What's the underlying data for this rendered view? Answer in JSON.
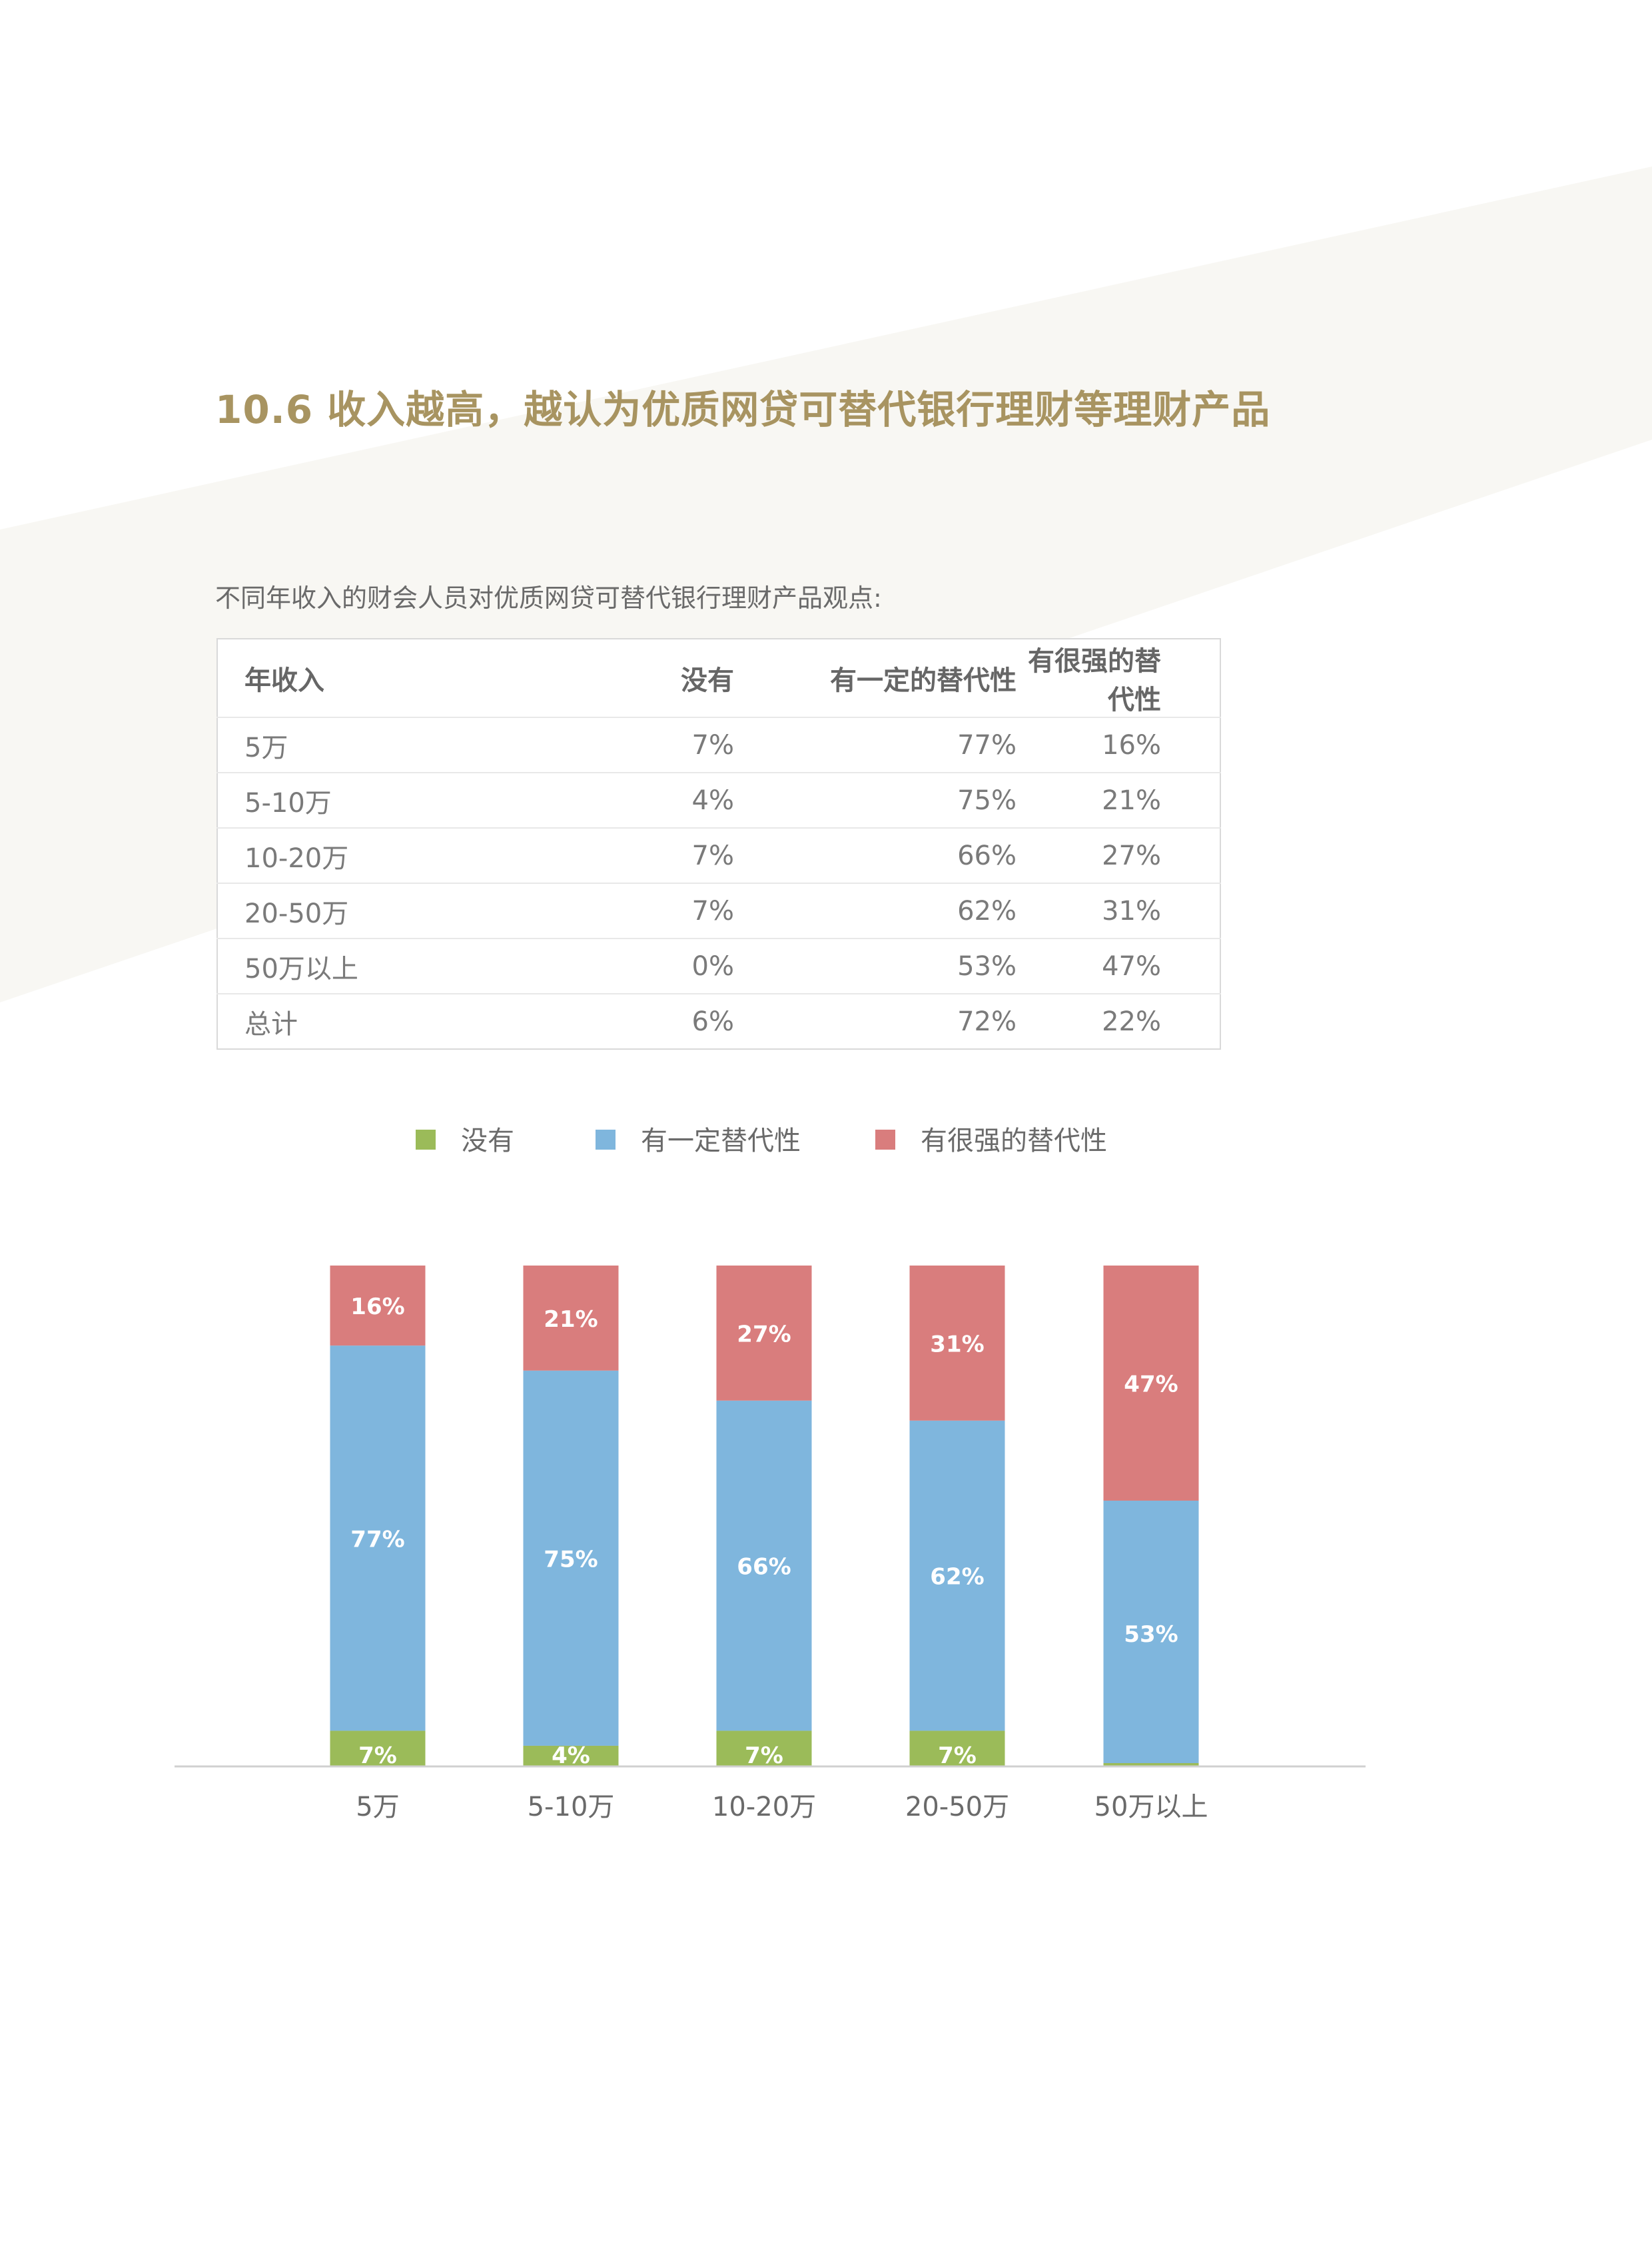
{
  "page": {
    "title": "10.6 收入越高，越认为优质网贷可替代银行理财等理财产品",
    "table_caption": "不同年收入的财会人员对优质网贷可替代银行理财产品观点:",
    "band_color": "#f8f7f3"
  },
  "table": {
    "headers": [
      "年收入",
      "没有",
      "有一定的替代性",
      "有很强的替代性"
    ],
    "rows": [
      [
        "5万",
        "7%",
        "77%",
        "16%"
      ],
      [
        "5-10万",
        "4%",
        "75%",
        "21%"
      ],
      [
        "10-20万",
        "7%",
        "66%",
        "27%"
      ],
      [
        "20-50万",
        "7%",
        "62%",
        "31%"
      ],
      [
        "50万以上",
        "0%",
        "53%",
        "47%"
      ],
      [
        "总计",
        "6%",
        "72%",
        "22%"
      ]
    ]
  },
  "chart_data": {
    "type": "bar",
    "stacked": true,
    "categories": [
      "5万",
      "5-10万",
      "10-20万",
      "20-50万",
      "50万以上"
    ],
    "series": [
      {
        "name": "没有",
        "color": "#9bbb59",
        "values": [
          7,
          4,
          7,
          7,
          0
        ],
        "labels": [
          "7%",
          "4%",
          "7%",
          "7%",
          ""
        ]
      },
      {
        "name": "有一定替代性",
        "color": "#7fb6dd",
        "values": [
          77,
          75,
          66,
          62,
          53
        ],
        "labels": [
          "77%",
          "75%",
          "66%",
          "62%",
          "53%"
        ]
      },
      {
        "name": "有很强的替代性",
        "color": "#d97d7d",
        "values": [
          16,
          21,
          27,
          31,
          47
        ],
        "labels": [
          "16%",
          "21%",
          "27%",
          "31%",
          "47%"
        ]
      }
    ],
    "ylim": [
      0,
      100
    ],
    "legend_position": "top",
    "grid": false,
    "title": "",
    "xlabel": "",
    "ylabel": ""
  }
}
